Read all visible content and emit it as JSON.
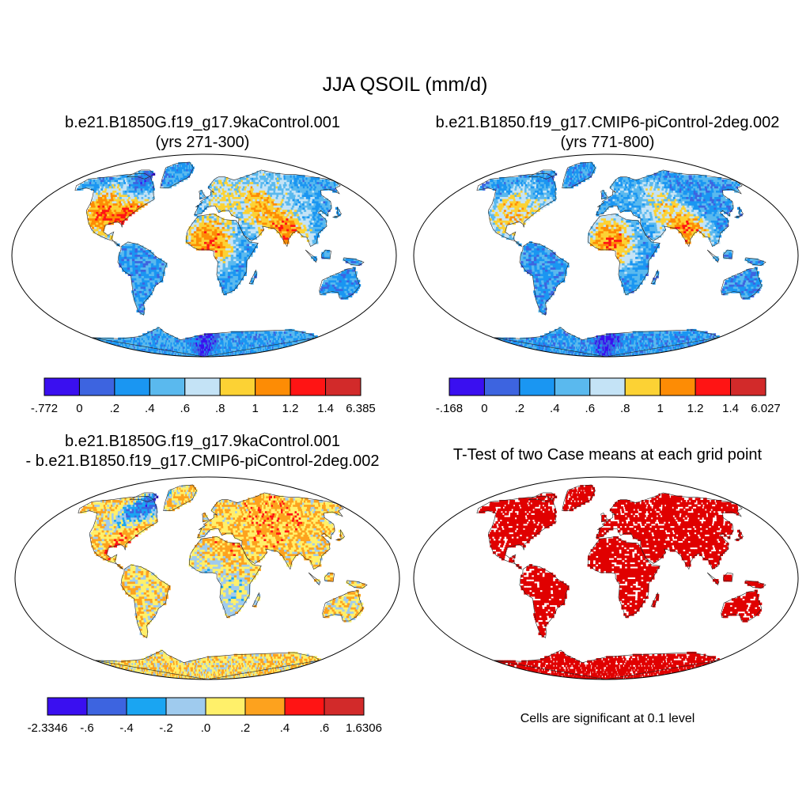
{
  "title": "JJA QSOIL (mm/d)",
  "colors": {
    "seq": [
      "#3a0ff0",
      "#3d64e0",
      "#1a96f2",
      "#5ab9ee",
      "#c4e3f6",
      "#fcd234",
      "#fd8c05",
      "#ff1414",
      "#d22a2a"
    ],
    "diff": [
      "#3a0ff0",
      "#3d64e0",
      "#1aa5f2",
      "#9fcbee",
      "#fff06a",
      "#fda21e",
      "#ff1414",
      "#d22a2a"
    ],
    "signif": "#e00000",
    "land_outline": "#222222"
  },
  "panels": [
    {
      "id": "case1",
      "title_line1": "b.e21.B1850G.f19_g17.9kaControl.001",
      "title_line2": "(yrs 271-300)",
      "colorbar": {
        "labels": [
          "-.772",
          "0",
          ".2",
          ".4",
          ".6",
          ".8",
          "1",
          "1.2",
          "1.4",
          "6.385"
        ]
      },
      "regions": [
        {
          "name": "hudson-low",
          "lon": -85,
          "lat": 60,
          "level": 0
        },
        {
          "name": "eastern-us-high",
          "lon": -80,
          "lat": 40,
          "level": 8
        },
        {
          "name": "central-us",
          "lon": -98,
          "lat": 42,
          "level": 7
        },
        {
          "name": "western-us",
          "lon": -115,
          "lat": 40,
          "level": 6
        },
        {
          "name": "sahel-band",
          "lon": 5,
          "lat": 13,
          "level": 7
        },
        {
          "name": "india",
          "lon": 78,
          "lat": 22,
          "level": 7
        },
        {
          "name": "central-asia",
          "lon": 62,
          "lat": 45,
          "level": 6
        },
        {
          "name": "europe",
          "lon": 25,
          "lat": 52,
          "level": 5
        },
        {
          "name": "siberia",
          "lon": 100,
          "lat": 62,
          "level": 4
        },
        {
          "name": "amazon",
          "lon": -60,
          "lat": -5,
          "level": 2
        },
        {
          "name": "australia",
          "lon": 135,
          "lat": -25,
          "level": 2
        },
        {
          "name": "antarctica",
          "lon": 0,
          "lat": -80,
          "level": 0
        }
      ]
    },
    {
      "id": "case2",
      "title_line1": "b.e21.B1850.f19_g17.CMIP6-piControl-2deg.002",
      "title_line2": "(yrs 771-800)",
      "colorbar": {
        "labels": [
          "-.168",
          "0",
          ".2",
          ".4",
          ".6",
          ".8",
          "1",
          "1.2",
          "1.4",
          "6.027"
        ]
      },
      "regions": [
        {
          "name": "hudson",
          "lon": -85,
          "lat": 60,
          "level": 2
        },
        {
          "name": "eastern-us",
          "lon": -80,
          "lat": 40,
          "level": 5
        },
        {
          "name": "central-us",
          "lon": -98,
          "lat": 42,
          "level": 6
        },
        {
          "name": "sahel-band",
          "lon": 5,
          "lat": 12,
          "level": 7
        },
        {
          "name": "india",
          "lon": 78,
          "lat": 22,
          "level": 7
        },
        {
          "name": "central-asia",
          "lon": 62,
          "lat": 45,
          "level": 5
        },
        {
          "name": "europe",
          "lon": 25,
          "lat": 52,
          "level": 3
        },
        {
          "name": "siberia",
          "lon": 100,
          "lat": 62,
          "level": 2
        },
        {
          "name": "australia",
          "lon": 135,
          "lat": -25,
          "level": 2
        },
        {
          "name": "antarctica",
          "lon": 0,
          "lat": -80,
          "level": 0
        }
      ]
    },
    {
      "id": "difference",
      "title_line1": "b.e21.B1850G.f19_g17.9kaControl.001",
      "title_line2": "- b.e21.B1850.f19_g17.CMIP6-piControl-2deg.002",
      "colorbar": {
        "labels": [
          "-2.3346",
          "-.6",
          "-.4",
          "-.2",
          ".0",
          ".2",
          ".4",
          ".6",
          "1.6306"
        ]
      },
      "regions": [
        {
          "name": "hudson-low",
          "lon": -85,
          "lat": 60,
          "level": 0
        },
        {
          "name": "eastern-us",
          "lon": -80,
          "lat": 40,
          "level": 6
        },
        {
          "name": "central-asia",
          "lon": 65,
          "lat": 48,
          "level": 5
        },
        {
          "name": "sahara-north",
          "lon": 15,
          "lat": 25,
          "level": 5
        },
        {
          "name": "sahel",
          "lon": 5,
          "lat": 12,
          "level": 3
        },
        {
          "name": "africa-south",
          "lon": 25,
          "lat": -15,
          "level": 3
        },
        {
          "name": "siberia",
          "lon": 100,
          "lat": 60,
          "level": 5
        },
        {
          "name": "amazon",
          "lon": -60,
          "lat": -5,
          "level": 4
        },
        {
          "name": "australia",
          "lon": 135,
          "lat": -25,
          "level": 4
        },
        {
          "name": "antarctica",
          "lon": 0,
          "lat": -80,
          "level": 4
        }
      ]
    },
    {
      "id": "ttest",
      "title_line1": "T-Test of two Case means at each grid point",
      "note": "Cells are significant at 0.1 level"
    }
  ]
}
